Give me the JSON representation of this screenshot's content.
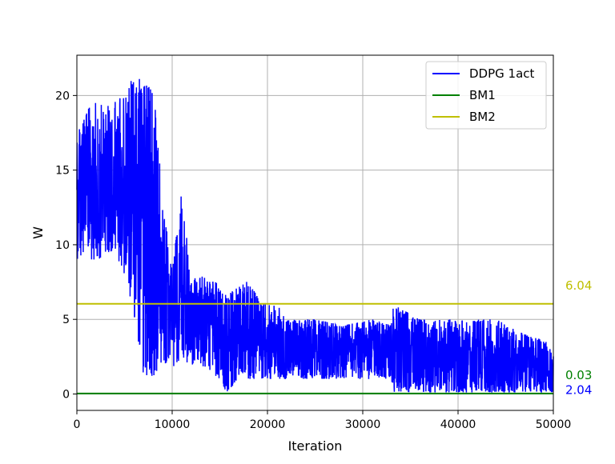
{
  "chart_data": {
    "type": "line",
    "title": "",
    "xlabel": "Iteration",
    "ylabel": "W",
    "xlim": [
      0,
      50000
    ],
    "ylim": [
      -1.1,
      22.7
    ],
    "xticks": [
      0,
      10000,
      20000,
      30000,
      40000,
      50000
    ],
    "xtick_labels": [
      "0",
      "10000",
      "20000",
      "30000",
      "40000",
      "50000"
    ],
    "yticks": [
      0,
      5,
      10,
      15,
      20
    ],
    "ytick_labels": [
      "0",
      "5",
      "10",
      "15",
      "20"
    ],
    "grid": true,
    "legend_position": "top-right",
    "series": [
      {
        "name": "DDPG 1act",
        "color": "#0000ff",
        "style": "noisy-line",
        "envelope": [
          {
            "x": 0,
            "low": 9.0,
            "high": 18.2
          },
          {
            "x": 1000,
            "low": 9.0,
            "high": 19.0
          },
          {
            "x": 2000,
            "low": 9.0,
            "high": 19.6
          },
          {
            "x": 3000,
            "low": 9.2,
            "high": 19.2
          },
          {
            "x": 4000,
            "low": 9.4,
            "high": 19.6
          },
          {
            "x": 5000,
            "low": 8.0,
            "high": 20.1
          },
          {
            "x": 6000,
            "low": 5.2,
            "high": 21.5
          },
          {
            "x": 7000,
            "low": 1.2,
            "high": 20.8
          },
          {
            "x": 8000,
            "low": 1.2,
            "high": 21.0
          },
          {
            "x": 9000,
            "low": 1.6,
            "high": 13.0
          },
          {
            "x": 10000,
            "low": 1.8,
            "high": 8.2
          },
          {
            "x": 11000,
            "low": 2.2,
            "high": 13.6
          },
          {
            "x": 12000,
            "low": 2.0,
            "high": 7.6
          },
          {
            "x": 13000,
            "low": 1.8,
            "high": 8.0
          },
          {
            "x": 14000,
            "low": 1.5,
            "high": 7.6
          },
          {
            "x": 15000,
            "low": 1.0,
            "high": 7.4
          },
          {
            "x": 15700,
            "low": 0.1,
            "high": 6.6
          },
          {
            "x": 17000,
            "low": 1.0,
            "high": 7.2
          },
          {
            "x": 18000,
            "low": 1.0,
            "high": 7.6
          },
          {
            "x": 19000,
            "low": 1.0,
            "high": 6.5
          },
          {
            "x": 20000,
            "low": 1.0,
            "high": 6.0
          },
          {
            "x": 21000,
            "low": 1.0,
            "high": 6.0
          },
          {
            "x": 22000,
            "low": 1.0,
            "high": 5.0
          },
          {
            "x": 25000,
            "low": 1.0,
            "high": 5.0
          },
          {
            "x": 28000,
            "low": 1.0,
            "high": 4.6
          },
          {
            "x": 31000,
            "low": 1.0,
            "high": 5.0
          },
          {
            "x": 33000,
            "low": 1.0,
            "high": 4.6
          },
          {
            "x": 33200,
            "low": 0.1,
            "high": 6.0
          },
          {
            "x": 36000,
            "low": 0.1,
            "high": 5.0
          },
          {
            "x": 40000,
            "low": 0.1,
            "high": 5.0
          },
          {
            "x": 44000,
            "low": 0.1,
            "high": 5.0
          },
          {
            "x": 47000,
            "low": 0.1,
            "high": 4.0
          },
          {
            "x": 50000,
            "low": 0.1,
            "high": 3.4
          }
        ],
        "end_label": "2.04"
      },
      {
        "name": "BM1",
        "color": "#008000",
        "x": [
          0,
          50000
        ],
        "y": [
          0.03,
          0.03
        ],
        "end_label": "0.03"
      },
      {
        "name": "BM2",
        "color": "#bfbf00",
        "x": [
          0,
          50000
        ],
        "y": [
          6.04,
          6.04
        ],
        "end_label": "6.04"
      }
    ]
  }
}
